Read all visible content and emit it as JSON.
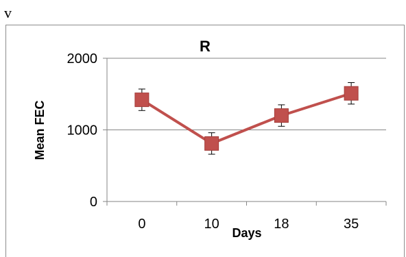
{
  "corner_label": "v",
  "chart_data": {
    "type": "line",
    "title": "R",
    "xlabel": "Days",
    "ylabel": "Mean FEC",
    "categories": [
      "0",
      "10",
      "18",
      "35"
    ],
    "series": [
      {
        "values": [
          1420,
          810,
          1200,
          1510
        ],
        "error": [
          150,
          150,
          150,
          150
        ]
      }
    ],
    "ylim": [
      0,
      2000
    ],
    "yticks": [
      0,
      1000,
      2000
    ],
    "grid": true,
    "legend": "none",
    "colors": {
      "series": "#c0504d",
      "marker_edge": "#a43d3a",
      "grid": "#868686",
      "axis": "#868686"
    }
  }
}
